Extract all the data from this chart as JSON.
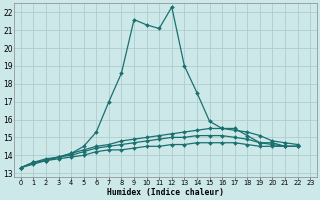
{
  "xlabel": "Humidex (Indice chaleur)",
  "background_color": "#cde8e8",
  "grid_color": "#b0cccc",
  "line_color": "#1a7070",
  "xlim": [
    -0.5,
    23.5
  ],
  "ylim": [
    12.8,
    22.5
  ],
  "xticks": [
    0,
    1,
    2,
    3,
    4,
    5,
    6,
    7,
    8,
    9,
    10,
    11,
    12,
    13,
    14,
    15,
    16,
    17,
    18,
    19,
    20,
    21,
    22,
    23
  ],
  "yticks": [
    13,
    14,
    15,
    16,
    17,
    18,
    19,
    20,
    21,
    22
  ],
  "series": [
    [
      13.3,
      13.6,
      13.8,
      13.9,
      14.1,
      14.5,
      15.3,
      17.0,
      18.6,
      21.6,
      21.3,
      21.1,
      22.3,
      19.0,
      17.5,
      15.9,
      15.5,
      15.5,
      15.1,
      14.7,
      14.7,
      14.5,
      14.5
    ],
    [
      13.3,
      13.6,
      13.7,
      13.9,
      14.1,
      14.3,
      14.5,
      14.6,
      14.8,
      14.9,
      15.0,
      15.1,
      15.2,
      15.3,
      15.4,
      15.5,
      15.5,
      15.4,
      15.3,
      15.1,
      14.8,
      14.7,
      14.6
    ],
    [
      13.3,
      13.6,
      13.7,
      13.9,
      14.0,
      14.2,
      14.4,
      14.5,
      14.6,
      14.7,
      14.8,
      14.9,
      15.0,
      15.0,
      15.1,
      15.1,
      15.1,
      15.0,
      14.9,
      14.7,
      14.6,
      14.5,
      14.5
    ],
    [
      13.3,
      13.5,
      13.7,
      13.8,
      13.9,
      14.0,
      14.2,
      14.3,
      14.3,
      14.4,
      14.5,
      14.5,
      14.6,
      14.6,
      14.7,
      14.7,
      14.7,
      14.7,
      14.6,
      14.5,
      14.5,
      14.5,
      14.5
    ]
  ],
  "marker": "D",
  "markersize": 2.0
}
